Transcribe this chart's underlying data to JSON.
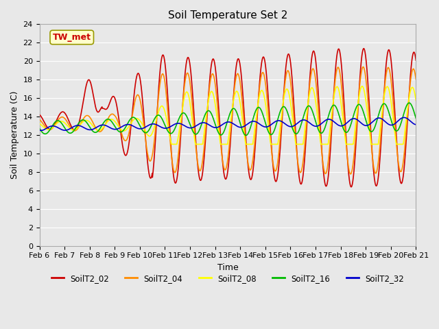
{
  "title": "Soil Temperature Set 2",
  "xlabel": "Time",
  "ylabel": "Soil Temperature (C)",
  "ylim": [
    0,
    24
  ],
  "yticks": [
    0,
    2,
    4,
    6,
    8,
    10,
    12,
    14,
    16,
    18,
    20,
    22,
    24
  ],
  "xtick_labels": [
    "Feb 6",
    "Feb 7",
    "Feb 8",
    "Feb 9",
    "Feb 10",
    "Feb 11",
    "Feb 12",
    "Feb 13",
    "Feb 14",
    "Feb 15",
    "Feb 16",
    "Feb 17",
    "Feb 18",
    "Feb 19",
    "Feb 20",
    "Feb 21"
  ],
  "series_colors": {
    "SoilT2_02": "#cc0000",
    "SoilT2_04": "#ff8c00",
    "SoilT2_08": "#ffff00",
    "SoilT2_16": "#00bb00",
    "SoilT2_32": "#0000cc"
  },
  "annotation_text": "TW_met",
  "annotation_color": "#cc0000",
  "annotation_bg": "#ffffcc",
  "annotation_edge": "#999900",
  "plot_bg": "#e8e8e8",
  "fig_bg": "#e8e8e8",
  "grid_color": "#ffffff",
  "linewidth": 1.2,
  "title_fontsize": 11,
  "label_fontsize": 9,
  "tick_fontsize": 8
}
